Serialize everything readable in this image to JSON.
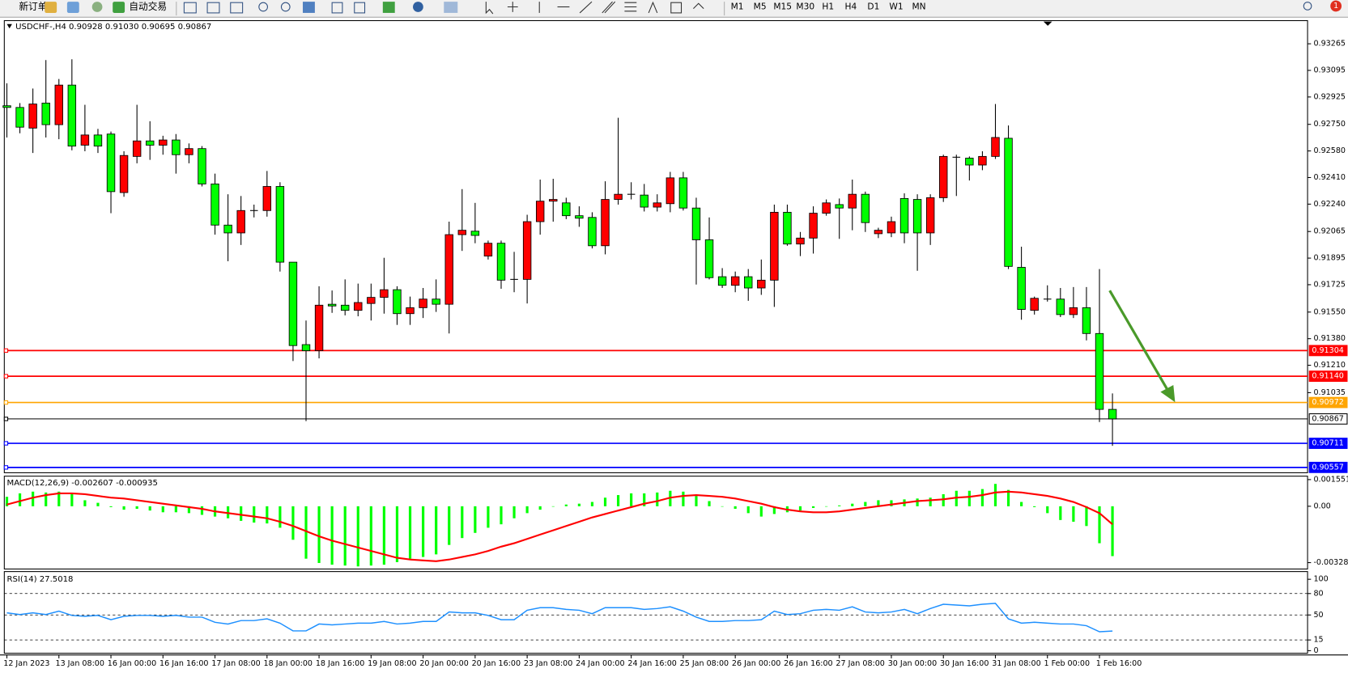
{
  "toolbar": {
    "new_order": "新订单",
    "auto_trading": "自动交易",
    "timeframes": [
      "M1",
      "M5",
      "M15",
      "M30",
      "H1",
      "H4",
      "D1",
      "W1",
      "MN"
    ],
    "notifications": 1
  },
  "chart_data": [
    {
      "type": "candlestick",
      "title": "USDCHF-,H4",
      "subtitle": "0.90928 0.91030 0.90695 0.90867",
      "bull_color": "#ff0000",
      "bear_color": "#00ff00",
      "grid": false,
      "categories": [
        "12 Jan 2023",
        null,
        null,
        null,
        "13 Jan 08:00",
        null,
        null,
        null,
        "16 Jan 00:00",
        null,
        null,
        null,
        "16 Jan 16:00",
        null,
        null,
        null,
        "17 Jan 08:00",
        null,
        null,
        null,
        "18 Jan 00:00",
        null,
        null,
        null,
        "18 Jan 16:00",
        null,
        null,
        null,
        "19 Jan 08:00",
        null,
        null,
        null,
        "20 Jan 00:00",
        null,
        null,
        null,
        "20 Jan 16:00",
        null,
        null,
        null,
        "23 Jan 08:00",
        null,
        null,
        null,
        "24 Jan 00:00",
        null,
        null,
        null,
        "24 Jan 16:00",
        null,
        null,
        null,
        "25 Jan 08:00",
        null,
        null,
        null,
        "26 Jan 00:00",
        null,
        null,
        null,
        "26 Jan 16:00",
        null,
        null,
        null,
        "27 Jan 08:00",
        null,
        null,
        null,
        "30 Jan 00:00",
        null,
        null,
        null,
        "30 Jan 16:00",
        null,
        null,
        null,
        "31 Jan 08:00",
        null,
        null,
        null,
        "1 Feb 00:00",
        null,
        null,
        null,
        "1 Feb 16:00",
        null
      ],
      "open": [
        0.92869,
        0.92858,
        0.92726,
        0.92886,
        0.92748,
        0.93001,
        0.92617,
        0.92682,
        0.92688,
        0.92314,
        0.92545,
        0.92644,
        0.92617,
        0.9265,
        0.92556,
        0.92595,
        0.92369,
        0.92106,
        0.92056,
        0.92199,
        0.92199,
        0.92353,
        0.91869,
        0.91342,
        0.91303,
        0.916,
        0.91594,
        0.91561,
        0.91605,
        0.91644,
        0.91693,
        0.9154,
        0.91578,
        0.91633,
        0.916,
        0.92045,
        0.92067,
        0.91908,
        0.9199,
        0.91759,
        0.91759,
        0.92128,
        0.92259,
        0.92248,
        0.92166,
        0.92155,
        0.91974,
        0.9227,
        0.92303,
        0.92298,
        0.92221,
        0.92243,
        0.92408,
        0.92215,
        0.92012,
        0.91776,
        0.91721,
        0.91776,
        0.91704,
        0.91754,
        0.92188,
        0.91985,
        0.92023,
        0.92182,
        0.92237,
        0.92215,
        0.92303,
        0.92051,
        0.92056,
        0.92276,
        0.9227,
        0.92056,
        0.92281,
        0.9254,
        0.92534,
        0.9249,
        0.92545,
        0.92661,
        0.91836,
        0.91561,
        0.91633,
        0.91633,
        0.91534,
        0.91578,
        0.91413,
        0.90928
      ],
      "high": [
        0.93012,
        0.92886,
        0.92979,
        0.93161,
        0.9304,
        0.93166,
        0.92875,
        0.92721,
        0.92704,
        0.92578,
        0.92875,
        0.9277,
        0.92677,
        0.92688,
        0.92628,
        0.92611,
        0.92435,
        0.92303,
        0.92292,
        0.92237,
        0.92452,
        0.9238,
        0.91869,
        0.91496,
        0.91715,
        0.91688,
        0.91759,
        0.91732,
        0.91732,
        0.91897,
        0.91715,
        0.91649,
        0.91704,
        0.91759,
        0.92128,
        0.92336,
        0.92248,
        0.92007,
        0.92007,
        0.91935,
        0.92172,
        0.92397,
        0.92402,
        0.92281,
        0.92226,
        0.92188,
        0.92386,
        0.92792,
        0.9238,
        0.92369,
        0.92303,
        0.92446,
        0.92446,
        0.92281,
        0.92155,
        0.91831,
        0.91809,
        0.91825,
        0.91886,
        0.92237,
        0.92237,
        0.92062,
        0.92226,
        0.9227,
        0.92276,
        0.92397,
        0.9232,
        0.92089,
        0.9216,
        0.92309,
        0.92303,
        0.92303,
        0.92556,
        0.92556,
        0.92545,
        0.92578,
        0.9288,
        0.92743,
        0.91968,
        0.91649,
        0.91721,
        0.91704,
        0.9171,
        0.9171,
        0.91825,
        0.9103
      ],
      "low": [
        0.92666,
        0.92693,
        0.92567,
        0.92666,
        0.92655,
        0.92584,
        0.92578,
        0.92567,
        0.92182,
        0.92287,
        0.92501,
        0.92523,
        0.92556,
        0.92435,
        0.92501,
        0.92353,
        0.92045,
        0.91875,
        0.91979,
        0.92155,
        0.9216,
        0.91809,
        0.91237,
        0.90853,
        0.91254,
        0.91545,
        0.91529,
        0.91523,
        0.91496,
        0.9154,
        0.91468,
        0.91468,
        0.91512,
        0.91551,
        0.91413,
        0.91941,
        0.9199,
        0.91886,
        0.91699,
        0.91677,
        0.91605,
        0.92045,
        0.92128,
        0.92144,
        0.92095,
        0.91957,
        0.91919,
        0.92237,
        0.9227,
        0.92193,
        0.92193,
        0.92188,
        0.92199,
        0.91726,
        0.91759,
        0.91704,
        0.91677,
        0.91622,
        0.9166,
        0.91583,
        0.91974,
        0.91908,
        0.91924,
        0.92166,
        0.92018,
        0.92073,
        0.92062,
        0.92023,
        0.92029,
        0.9199,
        0.91814,
        0.91979,
        0.92254,
        0.92292,
        0.92391,
        0.92457,
        0.92529,
        0.91825,
        0.91501,
        0.91534,
        0.91617,
        0.91518,
        0.91512,
        0.91369,
        0.90847,
        0.90695
      ],
      "close": [
        0.92858,
        0.92732,
        0.9288,
        0.92748,
        0.93001,
        0.92611,
        0.92682,
        0.92611,
        0.9232,
        0.92551,
        0.92644,
        0.92617,
        0.9265,
        0.92556,
        0.92595,
        0.92369,
        0.92106,
        0.92056,
        0.92199,
        0.92199,
        0.92353,
        0.91869,
        0.91336,
        0.91303,
        0.91594,
        0.91589,
        0.91561,
        0.91611,
        0.91644,
        0.91693,
        0.9154,
        0.91578,
        0.91633,
        0.916,
        0.92045,
        0.92073,
        0.9204,
        0.9199,
        0.91754,
        0.91759,
        0.92128,
        0.92259,
        0.9227,
        0.92166,
        0.9215,
        0.91974,
        0.9227,
        0.92303,
        0.92303,
        0.92221,
        0.92248,
        0.92408,
        0.92215,
        0.92012,
        0.9177,
        0.91721,
        0.91776,
        0.91704,
        0.91754,
        0.92188,
        0.91985,
        0.92023,
        0.92182,
        0.92248,
        0.92215,
        0.92303,
        0.92122,
        0.92073,
        0.92128,
        0.92056,
        0.92056,
        0.92281,
        0.92545,
        0.9254,
        0.9249,
        0.92545,
        0.92666,
        0.91842,
        0.91567,
        0.91638,
        0.91633,
        0.91534,
        0.91578,
        0.91413,
        0.90928,
        0.90867
      ],
      "ylim": [
        0.90523,
        0.93413
      ],
      "yticks": [
        0.93265,
        0.93095,
        0.92925,
        {
          "value": 0.9275,
          "label": "0.92750"
        },
        {
          "value": 0.9258,
          "label": "0.92580"
        },
        {
          "value": 0.9241,
          "label": "0.92410"
        },
        {
          "value": 0.9224,
          "label": "0.92240"
        },
        0.92065,
        0.91895,
        0.91725,
        {
          "value": 0.9155,
          "label": "0.91550"
        },
        {
          "value": 0.9138,
          "label": "0.91380"
        },
        {
          "value": 0.9121,
          "label": "0.91210"
        },
        0.91035
      ],
      "levels": [
        {
          "value": 0.91304,
          "label": "0.91304",
          "color": "#ff0000"
        },
        {
          "value": 0.9114,
          "label": "0.91140",
          "color": "#ff0000"
        },
        {
          "value": 0.90972,
          "label": "0.90972",
          "color": "#ffa500"
        },
        {
          "value": 0.90867,
          "label": "0.90867",
          "color": "#000000"
        },
        {
          "value": 0.90711,
          "label": "0.90711",
          "color": "#0000ff"
        },
        {
          "value": 0.90557,
          "label": "0.90557",
          "color": "#0000ff"
        }
      ]
    },
    {
      "type": "macd",
      "title": "MACD(12,26,9) -0.002607 -0.000935",
      "ylim": [
        -0.00365,
        0.0017
      ],
      "yticks": [
        0.001551,
        {
          "value": 0,
          "label": "0.00"
        },
        -0.00328
      ],
      "series": [
        {
          "style": "histogram",
          "color": "#00ff00",
          "values": [
            0.00055,
            0.00075,
            0.00085,
            0.0008,
            0.00085,
            0.00075,
            0.00035,
            0.0002,
            -5e-05,
            -0.0002,
            -0.00015,
            -0.00025,
            -0.00035,
            -0.00035,
            -0.0004,
            -0.0005,
            -0.0006,
            -0.0007,
            -0.00085,
            -0.00095,
            -0.001,
            -0.00125,
            -0.00195,
            -0.00305,
            -0.0033,
            -0.0034,
            -0.00345,
            -0.0035,
            -0.00345,
            -0.0034,
            -0.00325,
            -0.00305,
            -0.00295,
            -0.0028,
            -0.00225,
            -0.00185,
            -0.00155,
            -0.00125,
            -0.00105,
            -0.0007,
            -0.0004,
            -0.0002,
            0,
            0.0001,
            0.00015,
            0.00025,
            0.0005,
            0.00065,
            0.00075,
            0.00075,
            0.0008,
            0.0009,
            0.00085,
            0.0006,
            0.0003,
            0,
            -0.00015,
            -0.0004,
            -0.0006,
            -0.00045,
            -0.00035,
            -0.00025,
            -0.0001,
            0,
            5e-05,
            0.00015,
            0.00025,
            0.00035,
            0.00035,
            0.0004,
            0.00045,
            0.0005,
            0.0007,
            0.0009,
            0.0009,
            0.001,
            0.0013,
            0.00095,
            0.00025,
            -5e-05,
            -0.0004,
            -0.0008,
            -0.0009,
            -0.00115,
            -0.00215,
            -0.0029
          ]
        },
        {
          "style": "line",
          "color": "#ff0000",
          "values": [
            0.0001,
            0.0003,
            0.0005,
            0.00065,
            0.00075,
            0.00075,
            0.0007,
            0.0006,
            0.0005,
            0.00045,
            0.00035,
            0.00025,
            0.00015,
            5e-05,
            -5e-05,
            -0.00015,
            -0.0003,
            -0.0004,
            -0.0005,
            -0.0006,
            -0.0007,
            -0.0009,
            -0.00115,
            -0.00145,
            -0.00175,
            -0.002,
            -0.0022,
            -0.0024,
            -0.0026,
            -0.0028,
            -0.003,
            -0.0031,
            -0.00315,
            -0.0032,
            -0.0031,
            -0.00295,
            -0.0028,
            -0.0026,
            -0.00235,
            -0.00215,
            -0.0019,
            -0.00165,
            -0.0014,
            -0.00115,
            -0.0009,
            -0.00065,
            -0.00045,
            -0.00025,
            -5e-05,
            0.00015,
            0.0003,
            0.0005,
            0.0006,
            0.00065,
            0.0006,
            0.00055,
            0.00045,
            0.0003,
            0.00015,
            -5e-05,
            -0.0002,
            -0.0003,
            -0.00035,
            -0.00035,
            -0.0003,
            -0.0002,
            -0.0001,
            0,
            0.0001,
            0.0002,
            0.0003,
            0.00035,
            0.0004,
            0.0005,
            0.00055,
            0.00065,
            0.0008,
            0.00085,
            0.0008,
            0.0007,
            0.0006,
            0.00045,
            0.00025,
            -5e-05,
            -0.0004,
            -0.00105
          ]
        }
      ]
    },
    {
      "type": "line",
      "title": "RSI(14) 27.5018",
      "ylim": [
        -3.6,
        110.8
      ],
      "yticks": [
        0,
        15,
        50,
        80,
        100
      ],
      "levels": [
        15,
        50,
        80
      ],
      "series": [
        {
          "color": "#1e90ff",
          "values": [
            53,
            50.6,
            53,
            50.6,
            55.4,
            49.4,
            48.2,
            49.4,
            43.4,
            48.2,
            49.4,
            49.4,
            48.2,
            49.4,
            47,
            47,
            39.8,
            37.3,
            42.2,
            42.2,
            44.6,
            38.6,
            27.7,
            27.7,
            37.3,
            36.1,
            37.3,
            38.6,
            38.6,
            41,
            37.3,
            38.6,
            41,
            41,
            54.2,
            53,
            53,
            49.4,
            43.4,
            43.4,
            56.6,
            60.2,
            60.2,
            57.8,
            56.6,
            51.8,
            60.2,
            60.2,
            60.2,
            57.8,
            59,
            61.4,
            55.4,
            47,
            41,
            41,
            42.2,
            42.2,
            43.4,
            55.4,
            50.6,
            51.8,
            56.6,
            57.8,
            56.6,
            61.4,
            54.2,
            53,
            54.2,
            57.8,
            51.8,
            59,
            65.1,
            63.9,
            62.7,
            65.1,
            66.3,
            44.6,
            38.6,
            39.8,
            38.6,
            37.3,
            37.3,
            34.9,
            26.5,
            27.5018
          ]
        }
      ]
    }
  ]
}
